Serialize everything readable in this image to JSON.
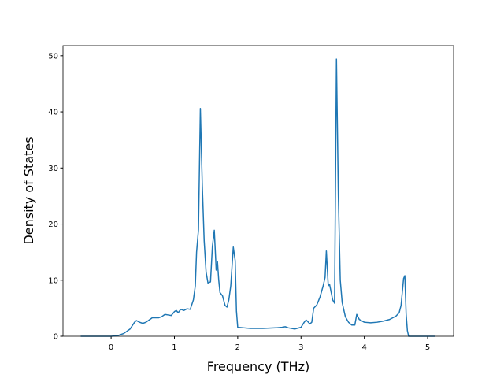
{
  "chart_data": {
    "type": "line",
    "xlabel": "Frequency (THz)",
    "ylabel": "Density of States",
    "color": "#1f77b4",
    "x": [
      -0.48,
      0,
      0.1,
      0.2,
      0.3,
      0.37,
      0.4,
      0.45,
      0.5,
      0.55,
      0.6,
      0.65,
      0.7,
      0.75,
      0.8,
      0.85,
      0.9,
      0.95,
      1.0,
      1.03,
      1.06,
      1.1,
      1.15,
      1.2,
      1.25,
      1.3,
      1.33,
      1.35,
      1.38,
      1.41,
      1.44,
      1.47,
      1.5,
      1.53,
      1.57,
      1.6,
      1.63,
      1.66,
      1.68,
      1.7,
      1.72,
      1.76,
      1.8,
      1.83,
      1.86,
      1.89,
      1.93,
      1.96,
      1.98,
      2.0,
      2.1,
      2.2,
      2.4,
      2.6,
      2.7,
      2.75,
      2.8,
      2.9,
      3.0,
      3.05,
      3.08,
      3.1,
      3.14,
      3.17,
      3.2,
      3.25,
      3.3,
      3.35,
      3.38,
      3.4,
      3.43,
      3.45,
      3.5,
      3.53,
      3.56,
      3.59,
      3.62,
      3.65,
      3.7,
      3.75,
      3.8,
      3.85,
      3.88,
      3.92,
      4.0,
      4.1,
      4.2,
      4.3,
      4.4,
      4.5,
      4.55,
      4.58,
      4.62,
      4.64,
      4.66,
      4.68,
      4.7,
      5.12
    ],
    "values": [
      0,
      0,
      0.1,
      0.5,
      1.3,
      2.5,
      2.8,
      2.5,
      2.3,
      2.5,
      2.9,
      3.3,
      3.3,
      3.3,
      3.5,
      3.9,
      3.8,
      3.7,
      4.4,
      4.6,
      4.2,
      4.8,
      4.6,
      4.9,
      4.8,
      6.5,
      9,
      15,
      19,
      40.6,
      27,
      17,
      11.5,
      9.5,
      9.7,
      16,
      18.9,
      11.8,
      13.3,
      10,
      7.8,
      7.2,
      5.5,
      5.2,
      6.5,
      9,
      15.9,
      13.5,
      4.5,
      1.6,
      1.5,
      1.4,
      1.4,
      1.5,
      1.6,
      1.7,
      1.5,
      1.3,
      1.6,
      2.5,
      2.9,
      2.7,
      2.2,
      2.5,
      5,
      5.6,
      7,
      9,
      10.5,
      15.2,
      9,
      9.3,
      6.5,
      5.9,
      49.4,
      25,
      10,
      6,
      3.5,
      2.5,
      2,
      2,
      3.9,
      3,
      2.5,
      2.4,
      2.5,
      2.7,
      3,
      3.6,
      4.2,
      5.5,
      10.3,
      10.8,
      4,
      1,
      0,
      0
    ],
    "xlim": [
      -0.76,
      5.41
    ],
    "ylim": [
      0,
      51.8
    ],
    "xticks": [
      0,
      1,
      2,
      3,
      4,
      5
    ],
    "yticks": [
      0,
      10,
      20,
      30,
      40,
      50
    ],
    "grid": false
  }
}
